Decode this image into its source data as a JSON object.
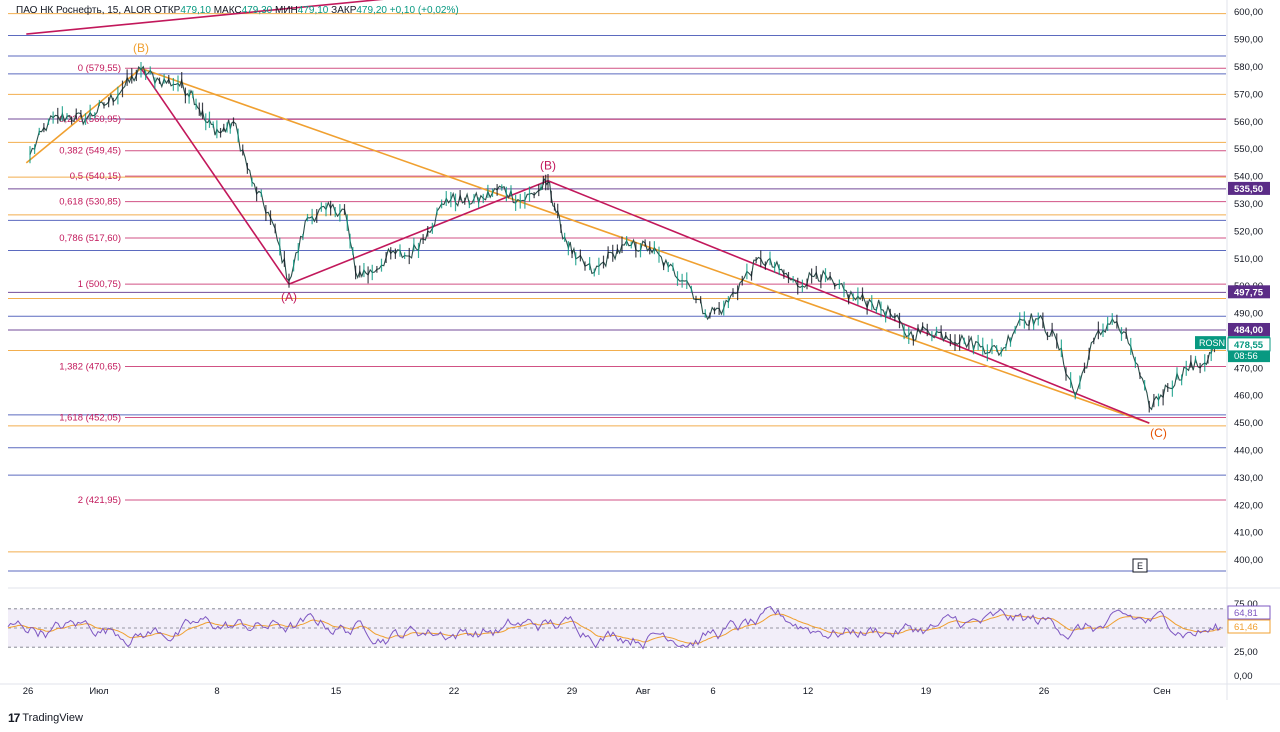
{
  "header": {
    "title": "ПАО НК Роснефть, 15, ALOR",
    "open_label": "ОТКР",
    "open": "479,10",
    "high_label": "МАКС",
    "high": "479,30",
    "low_label": "МИН",
    "low": "479,10",
    "close_label": "ЗАКР",
    "close": "479,20",
    "change": "+0,10 (+0,02%)"
  },
  "branding": {
    "name": "TradingView"
  },
  "chart_data": {
    "type": "line",
    "symbol": "ROSN",
    "ylim": [
      392,
      603
    ],
    "price_ticks": [
      "600,00",
      "590,00",
      "580,00",
      "570,00",
      "560,00",
      "550,00",
      "540,00",
      "530,00",
      "520,00",
      "510,00",
      "500,00",
      "490,00",
      "480,00",
      "470,00",
      "460,00",
      "450,00",
      "440,00",
      "430,00",
      "420,00",
      "410,00",
      "400,00"
    ],
    "price_tick_values": [
      600,
      590,
      580,
      570,
      560,
      550,
      540,
      530,
      520,
      510,
      500,
      490,
      480,
      470,
      460,
      450,
      440,
      430,
      420,
      410,
      400
    ],
    "x_labels": [
      "26",
      "Июл",
      "8",
      "15",
      "22",
      "29",
      "Авг",
      "6",
      "12",
      "19",
      "26",
      "Сен"
    ],
    "price_badges": [
      {
        "label": "535,50",
        "value": 535.5,
        "color": "#5b2c87"
      },
      {
        "label": "497,75",
        "value": 497.75,
        "color": "#5b2c87"
      },
      {
        "label": "484,00",
        "value": 484.0,
        "color": "#5b2c87"
      },
      {
        "label": "479,20",
        "value": 479.2,
        "color": "#089981",
        "ticker": "ROSN",
        "timer": "08:56"
      },
      {
        "label": "478,55",
        "value": 478.55,
        "color": "#ffffff",
        "text_color": "#089981"
      }
    ],
    "fib_levels": [
      {
        "ratio": "0",
        "label": "0 (579,55)",
        "value": 579.55
      },
      {
        "ratio": "0.236",
        "label": "0,236 (560,95)",
        "value": 560.95
      },
      {
        "ratio": "0.382",
        "label": "0,382 (549,45)",
        "value": 549.45
      },
      {
        "ratio": "0.5",
        "label": "0,5 (540,15)",
        "value": 540.15
      },
      {
        "ratio": "0.618",
        "label": "0,618 (530,85)",
        "value": 530.85
      },
      {
        "ratio": "0.786",
        "label": "0,786 (517,60)",
        "value": 517.6
      },
      {
        "ratio": "1",
        "label": "1 (500,75)",
        "value": 500.75
      },
      {
        "ratio": "1.382",
        "label": "1,382 (470,65)",
        "value": 470.65
      },
      {
        "ratio": "1.618",
        "label": "1,618 (452,05)",
        "value": 452.05
      },
      {
        "ratio": "2",
        "label": "2 (421,95)",
        "value": 421.95
      }
    ],
    "horizontal_levels": [
      {
        "value": 599.5,
        "color": "#f0a030"
      },
      {
        "value": 591.5,
        "color": "#3f51b5"
      },
      {
        "value": 584.0,
        "color": "#3f51b5"
      },
      {
        "value": 577.5,
        "color": "#3f51b5"
      },
      {
        "value": 570.0,
        "color": "#f0a030"
      },
      {
        "value": 561.0,
        "color": "#5b2c87"
      },
      {
        "value": 552.5,
        "color": "#f0a030"
      },
      {
        "value": 539.8,
        "color": "#f0a030"
      },
      {
        "value": 535.5,
        "color": "#5b2c87"
      },
      {
        "value": 526.0,
        "color": "#f0a030"
      },
      {
        "value": 524.0,
        "color": "#3f51b5"
      },
      {
        "value": 513.0,
        "color": "#3f51b5"
      },
      {
        "value": 497.75,
        "color": "#5b2c87"
      },
      {
        "value": 495.5,
        "color": "#f0a030"
      },
      {
        "value": 489.0,
        "color": "#3f51b5"
      },
      {
        "value": 484.0,
        "color": "#5b2c87"
      },
      {
        "value": 476.5,
        "color": "#f0a030"
      },
      {
        "value": 453.0,
        "color": "#3f51b5"
      },
      {
        "value": 449.0,
        "color": "#f0a030"
      },
      {
        "value": 441.0,
        "color": "#3f51b5"
      },
      {
        "value": 431.0,
        "color": "#3f51b5"
      },
      {
        "value": 403.0,
        "color": "#f0a030"
      },
      {
        "value": 396.0,
        "color": "#3f51b5"
      }
    ],
    "wave_labels": [
      {
        "text": "(B)",
        "day": 6.0,
        "price": 585.5,
        "color": "#f0a030"
      },
      {
        "text": "(A)",
        "day": 14.0,
        "price": 494.5,
        "color": "#c2185b"
      },
      {
        "text": "(B)",
        "day": 28.0,
        "price": 542.5,
        "color": "#c2185b"
      },
      {
        "text": "(C)",
        "day": 61.0,
        "price": 445.0,
        "color": "#e65100"
      }
    ],
    "wave_lines": [
      {
        "color": "#f0a030",
        "points": [
          [
            -0.2,
            545
          ],
          [
            6.0,
            579.5
          ]
        ]
      },
      {
        "color": "#f0a030",
        "points": [
          [
            6.0,
            579.5
          ],
          [
            60.5,
            450
          ]
        ]
      },
      {
        "color": "#c2185b",
        "points": [
          [
            6.0,
            579.5
          ],
          [
            14.0,
            500.75
          ]
        ]
      },
      {
        "color": "#c2185b",
        "points": [
          [
            14.0,
            500.75
          ],
          [
            28.0,
            538.5
          ]
        ]
      },
      {
        "color": "#c2185b",
        "points": [
          [
            28.0,
            538.5
          ],
          [
            60.5,
            450
          ]
        ]
      },
      {
        "color": "#c2185b",
        "points": [
          [
            -0.2,
            592
          ],
          [
            21.0,
            606
          ]
        ]
      }
    ],
    "price_path": [
      [
        0,
        548
      ],
      [
        1,
        560
      ],
      [
        2,
        562
      ],
      [
        3,
        561
      ],
      [
        4,
        566
      ],
      [
        5,
        572
      ],
      [
        6,
        579
      ],
      [
        7,
        575
      ],
      [
        8,
        574
      ],
      [
        8.8,
        570
      ],
      [
        9.5,
        560
      ],
      [
        10.3,
        556
      ],
      [
        11,
        560
      ],
      [
        12,
        538
      ],
      [
        13,
        525
      ],
      [
        14,
        502
      ],
      [
        15,
        525
      ],
      [
        16,
        528
      ],
      [
        17,
        528
      ],
      [
        17.6,
        505
      ],
      [
        18.5,
        505
      ],
      [
        19.5,
        512
      ],
      [
        20.5,
        511
      ],
      [
        21.5,
        520
      ],
      [
        22.5,
        532
      ],
      [
        23.5,
        531
      ],
      [
        24.5,
        532
      ],
      [
        25.5,
        536
      ],
      [
        26.5,
        531
      ],
      [
        27.5,
        535
      ],
      [
        28,
        538
      ],
      [
        28.7,
        521
      ],
      [
        29.5,
        510
      ],
      [
        30.5,
        505
      ],
      [
        31.5,
        512
      ],
      [
        32.5,
        515
      ],
      [
        33.5,
        514
      ],
      [
        34.5,
        507
      ],
      [
        35.5,
        502
      ],
      [
        36.5,
        490
      ],
      [
        37.5,
        492
      ],
      [
        38.5,
        502
      ],
      [
        39.5,
        510
      ],
      [
        40.5,
        506
      ],
      [
        41.5,
        500
      ],
      [
        42.5,
        505
      ],
      [
        43.5,
        500
      ],
      [
        44.5,
        496
      ],
      [
        45.5,
        494
      ],
      [
        46.5,
        490
      ],
      [
        47.5,
        482
      ],
      [
        48.5,
        484
      ],
      [
        49.5,
        482
      ],
      [
        50.5,
        480
      ],
      [
        51.5,
        478
      ],
      [
        52.5,
        476
      ],
      [
        53.5,
        488
      ],
      [
        54.5,
        488
      ],
      [
        55.5,
        480
      ],
      [
        56.5,
        460
      ],
      [
        57.5,
        480
      ],
      [
        58.5,
        488
      ],
      [
        59.5,
        478
      ],
      [
        60.5,
        456
      ],
      [
        61.5,
        463
      ],
      [
        62.5,
        470
      ],
      [
        63.5,
        472
      ],
      [
        64.2,
        479.2
      ]
    ],
    "rsi": {
      "ticks": [
        "75,00",
        "50,00",
        "25,00",
        "0,00"
      ],
      "tick_values": [
        75,
        50,
        25,
        0
      ],
      "band": [
        30,
        70
      ],
      "ylim": [
        0,
        100
      ],
      "rsi_value": "64,81",
      "ma_value": "61,46"
    }
  }
}
